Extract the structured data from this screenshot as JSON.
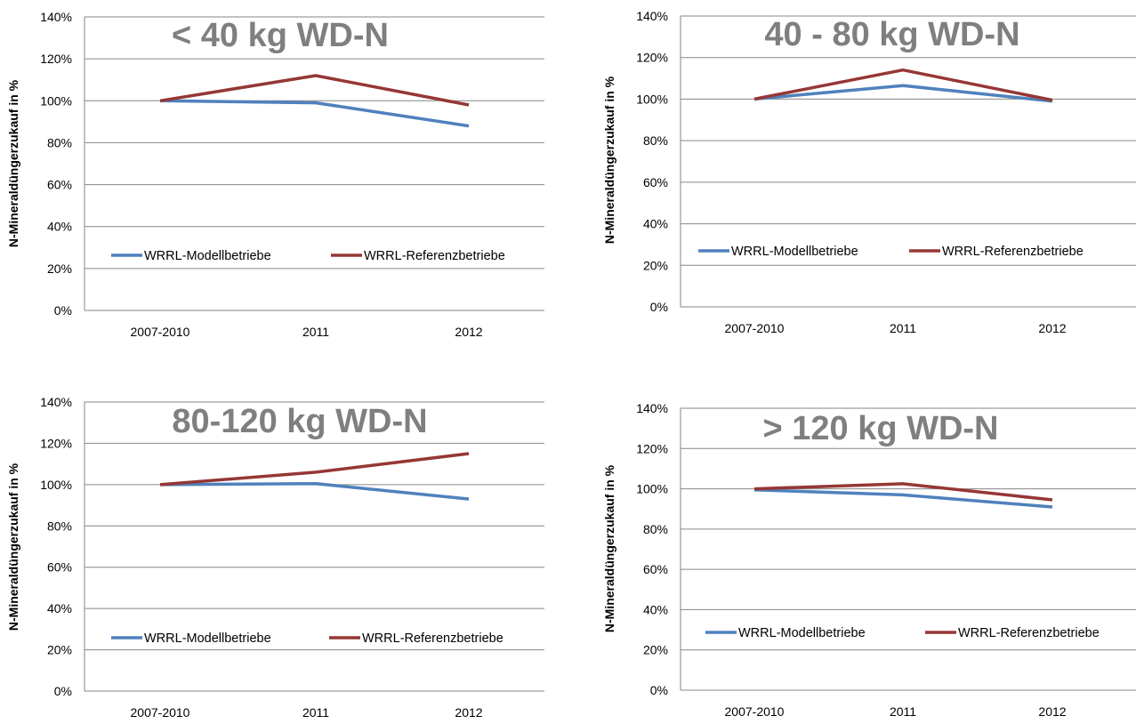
{
  "colors": {
    "modell": "#4f81bd",
    "referenz": "#953735",
    "grid": "#868686",
    "title": "#7f7f7f"
  },
  "chart_data": [
    {
      "type": "line",
      "title": "< 40 kg WD-N",
      "ylabel": "N-Mineraldüngerzukauf in %",
      "ylim": [
        0,
        140
      ],
      "y_ticks": [
        "0%",
        "20%",
        "40%",
        "60%",
        "80%",
        "100%",
        "120%",
        "140%"
      ],
      "categories": [
        "2007-2010",
        "2011",
        "2012"
      ],
      "series": [
        {
          "name": "WRRL-Modellbetriebe",
          "color": "#4f81bd",
          "values": [
            100,
            99,
            88
          ]
        },
        {
          "name": "WRRL-Referenzbetriebe",
          "color": "#953735",
          "values": [
            100,
            112,
            98
          ]
        }
      ]
    },
    {
      "type": "line",
      "title": "40 - 80 kg WD-N",
      "ylabel": "N-Mineraldüngerzukauf in %",
      "ylim": [
        0,
        140
      ],
      "y_ticks": [
        "0%",
        "20%",
        "40%",
        "60%",
        "80%",
        "100%",
        "120%",
        "140%"
      ],
      "categories": [
        "2007-2010",
        "2011",
        "2012"
      ],
      "series": [
        {
          "name": "WRRL-Modellbetriebe",
          "color": "#4f81bd",
          "values": [
            100,
            106.5,
            99
          ]
        },
        {
          "name": "WRRL-Referenzbetriebe",
          "color": "#953735",
          "values": [
            100,
            114,
            99.5
          ]
        }
      ]
    },
    {
      "type": "line",
      "title": "80-120 kg WD-N",
      "ylabel": "N-Mineraldüngerzukauf in %",
      "ylim": [
        0,
        140
      ],
      "y_ticks": [
        "0%",
        "20%",
        "40%",
        "60%",
        "80%",
        "100%",
        "120%",
        "140%"
      ],
      "categories": [
        "2007-2010",
        "2011",
        "2012"
      ],
      "series": [
        {
          "name": "WRRL-Modellbetriebe",
          "color": "#4f81bd",
          "values": [
            100,
            100.5,
            93
          ]
        },
        {
          "name": "WRRL-Referenzbetriebe",
          "color": "#953735",
          "values": [
            100,
            106,
            115
          ]
        }
      ]
    },
    {
      "type": "line",
      "title": "> 120 kg WD-N",
      "ylabel": "N-Mineraldüngerzukauf in %",
      "ylim": [
        0,
        140
      ],
      "y_ticks": [
        "0%",
        "20%",
        "40%",
        "60%",
        "80%",
        "100%",
        "120%",
        "140%"
      ],
      "categories": [
        "2007-2010",
        "2011",
        "2012"
      ],
      "series": [
        {
          "name": "WRRL-Modellbetriebe",
          "color": "#4f81bd",
          "values": [
            99.5,
            97,
            91
          ]
        },
        {
          "name": "WRRL-Referenzbetriebe",
          "color": "#953735",
          "values": [
            100,
            102.5,
            94.5
          ]
        }
      ]
    }
  ]
}
